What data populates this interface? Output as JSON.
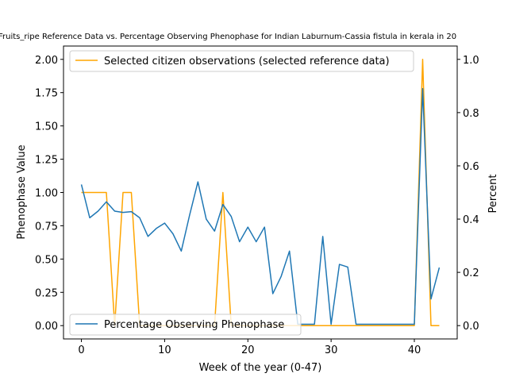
{
  "chart_data": {
    "type": "line",
    "title": "Fruits_ripe Reference Data vs. Percentage Observing Phenophase for Indian Laburnum-Cassia fistula in kerala in 20",
    "xlabel": "Week of the year (0-47)",
    "ylabel_left": "Phenophase Value",
    "ylabel_right": "Percent",
    "xlim": [
      -2.15,
      45.15
    ],
    "ylim_left": [
      0,
      2.0
    ],
    "ylim_right": [
      0,
      1.0
    ],
    "x_ticks": [
      0,
      10,
      20,
      30,
      40
    ],
    "x_tick_labels": [
      "0",
      "10",
      "20",
      "30",
      "40"
    ],
    "y_left_ticks": [
      0.0,
      0.25,
      0.5,
      0.75,
      1.0,
      1.25,
      1.5,
      1.75,
      2.0
    ],
    "y_left_tick_labels": [
      "0.00",
      "0.25",
      "0.50",
      "0.75",
      "1.00",
      "1.25",
      "1.50",
      "1.75",
      "2.00"
    ],
    "y_right_ticks": [
      0.0,
      0.2,
      0.4,
      0.6,
      0.8,
      1.0
    ],
    "y_right_tick_labels": [
      "0.0",
      "0.2",
      "0.4",
      "0.6",
      "0.8",
      "1.0"
    ],
    "grid": false,
    "series": [
      {
        "name": "Selected citizen observations (selected reference data)",
        "axis": "left",
        "color": "#ffa500",
        "legend_position": "upper left",
        "x": [
          0,
          1,
          2,
          3,
          4,
          5,
          6,
          7,
          8,
          9,
          10,
          11,
          12,
          13,
          14,
          15,
          16,
          17,
          18,
          19,
          20,
          21,
          22,
          23,
          24,
          25,
          26,
          27,
          28,
          29,
          30,
          31,
          32,
          33,
          34,
          35,
          36,
          37,
          38,
          39,
          40,
          41,
          42,
          43
        ],
        "y": [
          1,
          1,
          1,
          1,
          0,
          1,
          1,
          0,
          0,
          0,
          0,
          0,
          0,
          0,
          0,
          0,
          0,
          1,
          0,
          0,
          0,
          0,
          0,
          0,
          0,
          0,
          0,
          0,
          0,
          0,
          0,
          0,
          0,
          0,
          0,
          0,
          0,
          0,
          0,
          0,
          0,
          2,
          0,
          0
        ]
      },
      {
        "name": "Percentage Observing Phenophase",
        "axis": "right",
        "color": "#1f77b4",
        "legend_position": "lower left",
        "x": [
          0,
          1,
          2,
          3,
          4,
          5,
          6,
          7,
          8,
          9,
          10,
          11,
          12,
          13,
          14,
          15,
          16,
          17,
          18,
          19,
          20,
          21,
          22,
          23,
          24,
          25,
          26,
          27,
          28,
          29,
          30,
          31,
          32,
          33,
          34,
          35,
          36,
          37,
          38,
          39,
          40,
          41,
          42,
          43
        ],
        "y": [
          0.53,
          0.405,
          0.43,
          0.465,
          0.43,
          0.425,
          0.428,
          0.405,
          0.335,
          0.365,
          0.385,
          0.345,
          0.28,
          0.415,
          0.54,
          0.4,
          0.355,
          0.455,
          0.41,
          0.315,
          0.37,
          0.315,
          0.37,
          0.12,
          0.185,
          0.28,
          0.005,
          0.005,
          0.005,
          0.335,
          0.005,
          0.23,
          0.22,
          0.005,
          0.005,
          0.005,
          0.005,
          0.005,
          0.005,
          0.005,
          0.005,
          0.89,
          0.1,
          0.218
        ]
      }
    ]
  }
}
